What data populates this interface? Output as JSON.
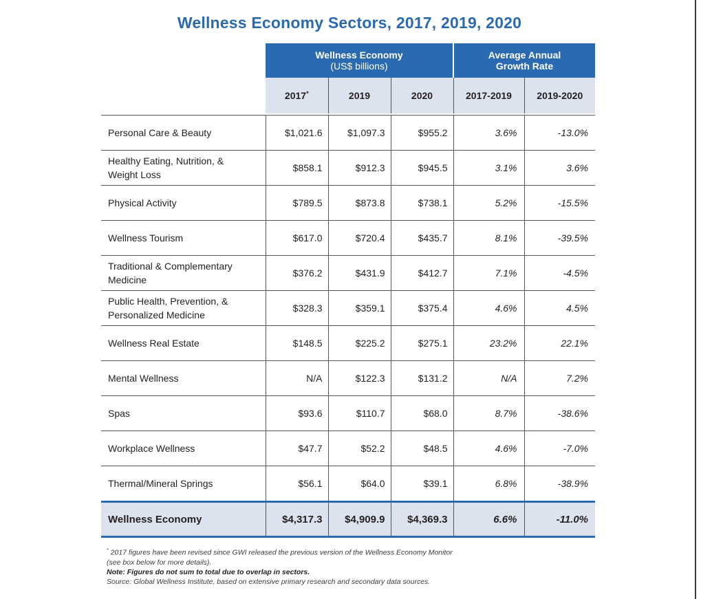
{
  "title": "Wellness Economy Sectors, 2017, 2019, 2020",
  "header": {
    "group1_title": "Wellness Economy",
    "group1_sub": "(US$ billions)",
    "group2_title_line1": "Average Annual",
    "group2_title_line2": "Growth Rate",
    "columns": [
      "2017",
      "2019",
      "2020",
      "2017-2019",
      "2019-2020"
    ],
    "col2017_mark": "*"
  },
  "rows": [
    {
      "label_lines": [
        "Personal Care & Beauty"
      ],
      "v2017": "$1,021.6",
      "v2019": "$1,097.3",
      "v2020": "$955.2",
      "g1719": "3.6%",
      "g1920": "-13.0%"
    },
    {
      "label_lines": [
        "Healthy Eating, Nutrition, &",
        "Weight Loss"
      ],
      "v2017": "$858.1",
      "v2019": "$912.3",
      "v2020": "$945.5",
      "g1719": "3.1%",
      "g1920": "3.6%"
    },
    {
      "label_lines": [
        "Physical Activity"
      ],
      "v2017": "$789.5",
      "v2019": "$873.8",
      "v2020": "$738.1",
      "g1719": "5.2%",
      "g1920": "-15.5%"
    },
    {
      "label_lines": [
        "Wellness Tourism"
      ],
      "v2017": "$617.0",
      "v2019": "$720.4",
      "v2020": "$435.7",
      "g1719": "8.1%",
      "g1920": "-39.5%"
    },
    {
      "label_lines": [
        "Traditional & Complementary",
        "Medicine"
      ],
      "v2017": "$376.2",
      "v2019": "$431.9",
      "v2020": "$412.7",
      "g1719": "7.1%",
      "g1920": "-4.5%"
    },
    {
      "label_lines": [
        "Public Health, Prevention, &",
        "Personalized Medicine"
      ],
      "v2017": "$328.3",
      "v2019": "$359.1",
      "v2020": "$375.4",
      "g1719": "4.6%",
      "g1920": "4.5%"
    },
    {
      "label_lines": [
        "Wellness Real Estate"
      ],
      "v2017": "$148.5",
      "v2019": "$225.2",
      "v2020": "$275.1",
      "g1719": "23.2%",
      "g1920": "22.1%"
    },
    {
      "label_lines": [
        "Mental Wellness"
      ],
      "v2017": "N/A",
      "v2019": "$122.3",
      "v2020": "$131.2",
      "g1719": "N/A",
      "g1920": "7.2%"
    },
    {
      "label_lines": [
        "Spas"
      ],
      "v2017": "$93.6",
      "v2019": "$110.7",
      "v2020": "$68.0",
      "g1719": "8.7%",
      "g1920": "-38.6%"
    },
    {
      "label_lines": [
        "Workplace Wellness"
      ],
      "v2017": "$47.7",
      "v2019": "$52.2",
      "v2020": "$48.5",
      "g1719": "4.6%",
      "g1920": "-7.0%"
    },
    {
      "label_lines": [
        "Thermal/Mineral Springs"
      ],
      "v2017": "$56.1",
      "v2019": "$64.0",
      "v2020": "$39.1",
      "g1719": "6.8%",
      "g1920": "-38.9%"
    }
  ],
  "total": {
    "label": "Wellness Economy",
    "v2017": "$4,317.3",
    "v2019": "$4,909.9",
    "v2020": "$4,369.3",
    "g1719": "6.6%",
    "g1920": "-11.0%"
  },
  "notes": {
    "revised_mark": "*",
    "revised_line1": "2017 figures have been revised since GWI released the previous version of the Wellness Economy Monitor",
    "revised_line2": "(see box below for more details).",
    "note": "Note: Figures do not sum to total due to overlap in sectors.",
    "source": "Source: Global Wellness Institute, based on extensive primary research and secondary data sources."
  },
  "colors": {
    "header_blue": "#2a6ab0",
    "header_grey": "#dde3ee",
    "text": "#231f20"
  }
}
